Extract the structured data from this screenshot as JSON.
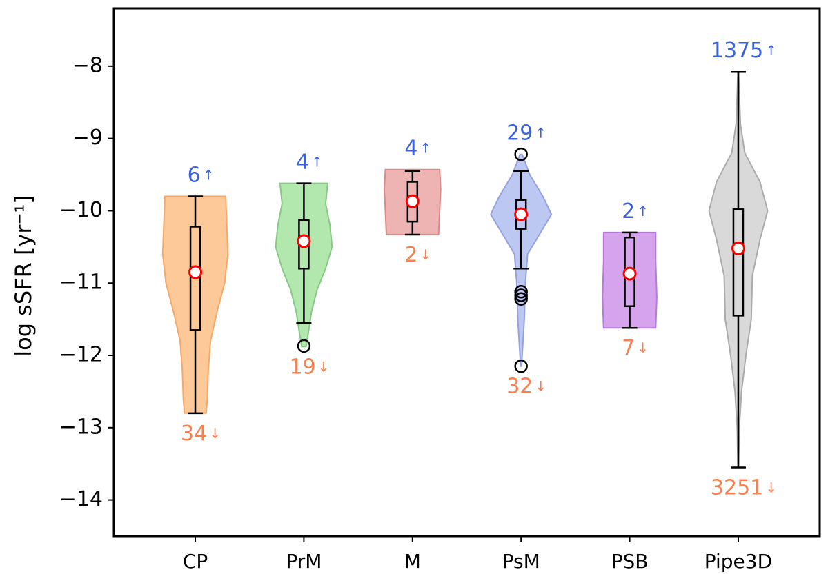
{
  "chart_data": {
    "type": "violin",
    "ylabel": "log sSFR  [yr⁻¹]",
    "ylim": [
      -14.5,
      -7.2
    ],
    "xlim": [
      0.25,
      6.75
    ],
    "yticks": [
      {
        "value": -8,
        "label": "−8"
      },
      {
        "value": -9,
        "label": "−9"
      },
      {
        "value": -10,
        "label": "−10"
      },
      {
        "value": -11,
        "label": "−11"
      },
      {
        "value": -12,
        "label": "−12"
      },
      {
        "value": -13,
        "label": "−13"
      },
      {
        "value": -14,
        "label": "−14"
      }
    ],
    "categories": [
      "CP",
      "PrM",
      "M",
      "PsM",
      "PSB",
      "Pipe3D"
    ],
    "arrows": {
      "up": "↑",
      "down": "↓"
    },
    "up_color": "#3b62d9",
    "down_color": "#f8804f",
    "violins": [
      {
        "color": "#fdbf87",
        "edge": "#f4a869",
        "y": [
          -9.8,
          -10.2,
          -10.6,
          -11.0,
          -11.4,
          -11.8,
          -12.2,
          -12.6,
          -12.8
        ],
        "half_width": [
          0.28,
          0.29,
          0.3,
          0.27,
          0.2,
          0.14,
          0.12,
          0.11,
          0.1
        ],
        "whisker_low": -12.8,
        "q1": -11.65,
        "q3": -10.22,
        "whisker_high": -9.8,
        "marker": -10.85,
        "outliers": [],
        "count_up": 6,
        "count_down": 34
      },
      {
        "color": "#a5e3a0",
        "edge": "#86c985",
        "y": [
          -9.62,
          -9.9,
          -10.2,
          -10.5,
          -10.8,
          -11.1,
          -11.4,
          -11.7,
          -11.88
        ],
        "half_width": [
          0.22,
          0.2,
          0.24,
          0.26,
          0.2,
          0.12,
          0.07,
          0.04,
          0.02
        ],
        "whisker_low": -11.55,
        "q1": -10.8,
        "q3": -10.13,
        "whisker_high": -9.62,
        "marker": -10.42,
        "outliers": [
          -11.87
        ],
        "count_up": 4,
        "count_down": 19
      },
      {
        "color": "#eba6a6",
        "edge": "#d88a8a",
        "y": [
          -9.43,
          -9.7,
          -10.0,
          -10.33
        ],
        "half_width": [
          0.25,
          0.26,
          0.25,
          0.24
        ],
        "whisker_low": -10.33,
        "q1": -10.15,
        "q3": -9.6,
        "whisker_high": -9.45,
        "marker": -9.87,
        "outliers": [],
        "count_up": 4,
        "count_down": 2
      },
      {
        "color": "#b0bdf0",
        "edge": "#95a3dd",
        "y": [
          -9.22,
          -9.5,
          -9.8,
          -10.05,
          -10.3,
          -10.6,
          -11.0,
          -11.5,
          -12.0,
          -12.15
        ],
        "half_width": [
          0.01,
          0.08,
          0.2,
          0.28,
          0.18,
          0.06,
          0.04,
          0.03,
          0.01,
          0.005
        ],
        "whisker_low": -10.8,
        "q1": -10.25,
        "q3": -9.85,
        "whisker_high": -9.45,
        "marker": -10.05,
        "outliers": [
          -9.22,
          -11.12,
          -11.17,
          -11.22,
          -12.15
        ],
        "count_up": 29,
        "count_down": 32
      },
      {
        "color": "#cf94ea",
        "edge": "#b77ad6",
        "y": [
          -10.3,
          -10.7,
          -11.2,
          -11.62
        ],
        "half_width": [
          0.24,
          0.24,
          0.25,
          0.24
        ],
        "whisker_low": -11.62,
        "q1": -11.32,
        "q3": -10.37,
        "whisker_high": -10.3,
        "marker": -10.87,
        "outliers": [],
        "count_up": 2,
        "count_down": 7
      },
      {
        "color": "#d2d2d2",
        "edge": "#ababab",
        "y": [
          -8.08,
          -8.8,
          -9.2,
          -9.6,
          -10.0,
          -10.4,
          -10.9,
          -11.5,
          -12.0,
          -12.5,
          -13.0,
          -13.55
        ],
        "half_width": [
          0.003,
          0.02,
          0.06,
          0.2,
          0.27,
          0.2,
          0.13,
          0.12,
          0.07,
          0.03,
          0.01,
          0.003
        ],
        "whisker_low": -13.55,
        "q1": -11.45,
        "q3": -9.98,
        "whisker_high": -8.08,
        "marker": -10.52,
        "outliers": [],
        "count_up": 1375,
        "count_down": 3251
      }
    ]
  }
}
